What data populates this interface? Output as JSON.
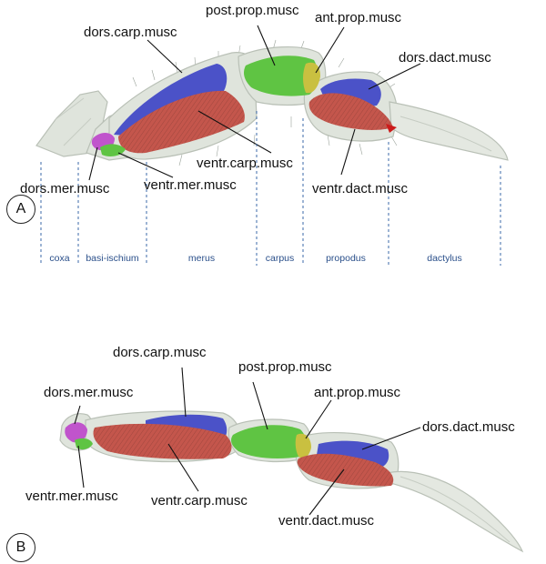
{
  "panels": [
    {
      "id": "A",
      "labels": {
        "post_prop": "post.prop.musc",
        "ant_prop": "ant.prop.musc",
        "dors_carp": "dors.carp.musc",
        "dors_dact": "dors.dact.musc",
        "ventr_carp": "ventr.carp.musc",
        "dors_mer": "dors.mer.musc",
        "ventr_mer": "ventr.mer.musc",
        "ventr_dact": "ventr.dact.musc"
      },
      "segments": [
        "coxa",
        "basi-ischium",
        "merus",
        "carpus",
        "propodus",
        "dactylus"
      ]
    },
    {
      "id": "B",
      "labels": {
        "dors_carp": "dors.carp.musc",
        "post_prop": "post.prop.musc",
        "dors_mer": "dors.mer.musc",
        "ant_prop": "ant.prop.musc",
        "dors_dact": "dors.dact.musc",
        "ventr_mer": "ventr.mer.musc",
        "ventr_carp": "ventr.carp.musc",
        "ventr_dact": "ventr.dact.musc"
      }
    }
  ],
  "colors": {
    "shell": "#dfe4dc",
    "shell_edge": "#b9c0b6",
    "blue": "#4b52c8",
    "red": "#c4564c",
    "green": "#5fc443",
    "magenta": "#c054cc",
    "segment_divider": "#3b6aa8",
    "segment_text": "#2a4f8a"
  }
}
